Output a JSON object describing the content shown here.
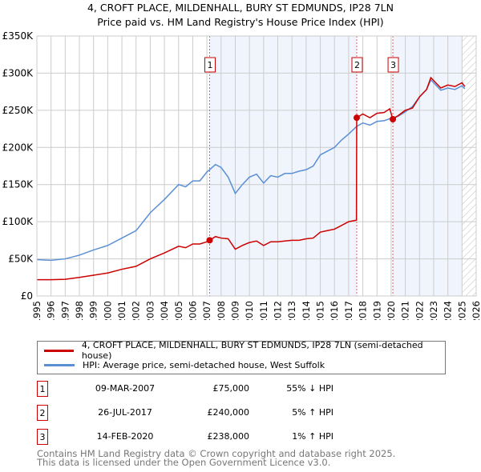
{
  "title": "4, CROFT PLACE, MILDENHALL, BURY ST EDMUNDS, IP28 7LN",
  "subtitle": "Price paid vs. HM Land Registry's House Price Index (HPI)",
  "chart_data": {
    "type": "line",
    "title": "4, CROFT PLACE, MILDENHALL, BURY ST EDMUNDS, IP28 7LN",
    "subtitle": "Price paid vs. HM Land Registry's House Price Index (HPI)",
    "xlim": [
      1995,
      2026
    ],
    "ylim": [
      0,
      350000
    ],
    "xticks": [
      "1995",
      "1996",
      "1997",
      "1998",
      "1999",
      "2000",
      "2001",
      "2002",
      "2003",
      "2004",
      "2005",
      "2006",
      "2007",
      "2008",
      "2009",
      "2010",
      "2011",
      "2012",
      "2013",
      "2014",
      "2015",
      "2016",
      "2017",
      "2018",
      "2019",
      "2020",
      "2021",
      "2022",
      "2023",
      "2024",
      "2025",
      "2026"
    ],
    "yticks": [
      {
        "v": 0,
        "label": "£0"
      },
      {
        "v": 50000,
        "label": "£50K"
      },
      {
        "v": 100000,
        "label": "£100K"
      },
      {
        "v": 150000,
        "label": "£150K"
      },
      {
        "v": 200000,
        "label": "£200K"
      },
      {
        "v": 250000,
        "label": "£250K"
      },
      {
        "v": 300000,
        "label": "£300K"
      },
      {
        "v": 350000,
        "label": "£350K"
      }
    ],
    "grid": true,
    "shaded_ranges": [
      [
        2007.19,
        2017.57
      ],
      [
        2020.12,
        2025.0
      ]
    ],
    "hatched_range": [
      2025.0,
      2026
    ],
    "series": [
      {
        "name": "4, CROFT PLACE, MILDENHALL, BURY ST EDMUNDS, IP28 7LN (semi-detached house)",
        "color": "#cc0000",
        "x": [
          1995,
          1996,
          1997,
          1998,
          1999,
          2000,
          2001,
          2002,
          2003,
          2004,
          2005,
          2005.5,
          2006,
          2006.5,
          2007,
          2007.19,
          2007.6,
          2008,
          2008.5,
          2009,
          2009.5,
          2010,
          2010.5,
          2011,
          2011.5,
          2012,
          2012.5,
          2013,
          2013.5,
          2014,
          2014.5,
          2015,
          2015.5,
          2016,
          2016.5,
          2017,
          2017.55,
          2017.57,
          2018,
          2018.5,
          2019,
          2019.5,
          2019.9,
          2020.12,
          2020.5,
          2021,
          2021.5,
          2022,
          2022.5,
          2022.8,
          2023,
          2023.5,
          2024,
          2024.5,
          2025,
          2025.2
        ],
        "y": [
          22000,
          22000,
          22500,
          25000,
          28000,
          31000,
          36000,
          40000,
          50000,
          58000,
          67000,
          65000,
          70000,
          70000,
          73000,
          75000,
          80000,
          78000,
          77000,
          63000,
          68000,
          72000,
          74000,
          68000,
          73000,
          73000,
          74000,
          75000,
          75000,
          77000,
          78000,
          86000,
          88000,
          90000,
          95000,
          100000,
          102000,
          240000,
          245000,
          240000,
          246000,
          247000,
          252000,
          238000,
          243000,
          250000,
          253000,
          268000,
          278000,
          294000,
          290000,
          280000,
          284000,
          282000,
          287000,
          282000
        ]
      },
      {
        "name": "HPI: Average price, semi-detached house, West Suffolk",
        "color": "#5b8fd4",
        "x": [
          1995,
          1996,
          1997,
          1998,
          1999,
          2000,
          2001,
          2002,
          2003,
          2004,
          2005,
          2005.5,
          2006,
          2006.5,
          2007,
          2007.19,
          2007.6,
          2008,
          2008.5,
          2009,
          2009.5,
          2010,
          2010.5,
          2011,
          2011.5,
          2012,
          2012.5,
          2013,
          2013.5,
          2014,
          2014.5,
          2015,
          2015.5,
          2016,
          2016.5,
          2017,
          2017.55,
          2018,
          2018.5,
          2019,
          2019.5,
          2020.12,
          2020.5,
          2021,
          2021.5,
          2022,
          2022.5,
          2022.8,
          2023,
          2023.5,
          2024,
          2024.5,
          2025,
          2025.2
        ],
        "y": [
          49000,
          48000,
          50000,
          55000,
          62000,
          68000,
          78000,
          88000,
          112000,
          130000,
          150000,
          147000,
          155000,
          155000,
          167000,
          170000,
          177000,
          173000,
          160000,
          138000,
          150000,
          160000,
          164000,
          152000,
          162000,
          160000,
          165000,
          165000,
          168000,
          170000,
          175000,
          190000,
          195000,
          200000,
          210000,
          218000,
          228000,
          233000,
          230000,
          235000,
          236000,
          240000,
          242000,
          248000,
          255000,
          268000,
          278000,
          291000,
          287000,
          277000,
          280000,
          278000,
          283000,
          279000
        ]
      }
    ],
    "sales": [
      {
        "label": "1",
        "x": 2007.19,
        "y": 75000
      },
      {
        "label": "2",
        "x": 2017.57,
        "y": 240000
      },
      {
        "label": "3",
        "x": 2020.12,
        "y": 238000
      }
    ]
  },
  "legend": [
    {
      "label": "4, CROFT PLACE, MILDENHALL, BURY ST EDMUNDS, IP28 7LN (semi-detached house)",
      "color": "#cc0000"
    },
    {
      "label": "HPI: Average price, semi-detached house, West Suffolk",
      "color": "#5b8fd4"
    }
  ],
  "transactions": [
    {
      "num": "1",
      "date": "09-MAR-2007",
      "price": "£75,000",
      "diff": "55% ↓ HPI"
    },
    {
      "num": "2",
      "date": "26-JUL-2017",
      "price": "£240,000",
      "diff": "5% ↑ HPI"
    },
    {
      "num": "3",
      "date": "14-FEB-2020",
      "price": "£238,000",
      "diff": "1% ↑ HPI"
    }
  ],
  "footer": {
    "line1": "Contains HM Land Registry data © Crown copyright and database right 2025.",
    "line2": "This data is licensed under the Open Government Licence v3.0."
  }
}
